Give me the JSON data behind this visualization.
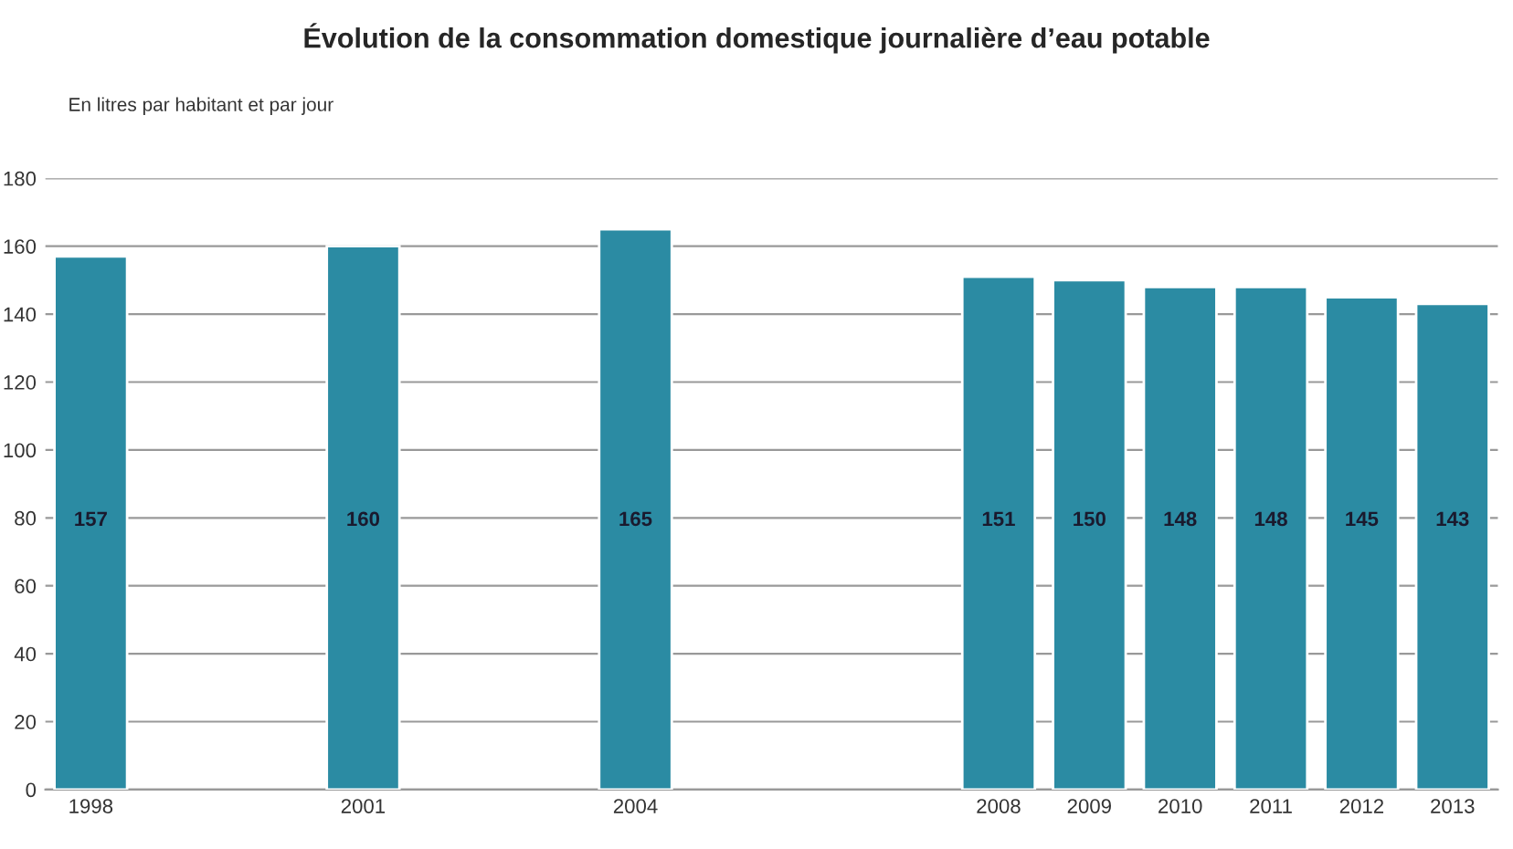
{
  "chart_data": {
    "type": "bar",
    "title": "Évolution de la consommation domestique journalière d’eau potable",
    "ylabel": "En litres par habitant et par jour",
    "categories": [
      "1998",
      null,
      null,
      "2001",
      null,
      null,
      "2004",
      null,
      null,
      null,
      "2008",
      "2009",
      "2010",
      "2011",
      "2012",
      "2013"
    ],
    "values": [
      157,
      null,
      null,
      160,
      null,
      null,
      165,
      null,
      null,
      null,
      151,
      150,
      148,
      148,
      145,
      143
    ],
    "color": "#2b8ba3",
    "ylim": [
      0,
      180
    ],
    "yticks": [
      0,
      20,
      40,
      60,
      80,
      100,
      120,
      140,
      160,
      180
    ],
    "grid": "y",
    "data_labels": true
  }
}
